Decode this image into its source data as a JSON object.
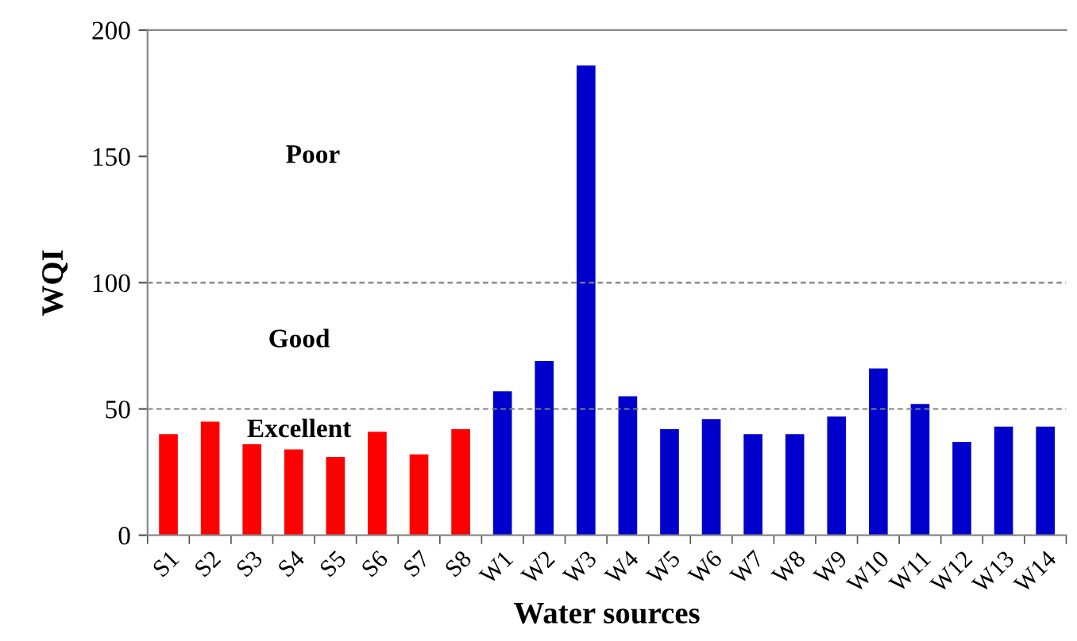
{
  "chart_data": {
    "type": "bar",
    "xlabel": "Water sources",
    "ylabel": "WQI",
    "categories": [
      "S1",
      "S2",
      "S3",
      "S4",
      "S5",
      "S6",
      "S7",
      "S8",
      "W1",
      "W2",
      "W3",
      "W4",
      "W5",
      "W6",
      "W7",
      "W8",
      "W9",
      "W10",
      "W11",
      "W12",
      "W13",
      "W14"
    ],
    "values": [
      40,
      45,
      36,
      34,
      31,
      41,
      32,
      42,
      57,
      69,
      186,
      55,
      42,
      46,
      40,
      40,
      47,
      66,
      52,
      37,
      43,
      43
    ],
    "colors": [
      "#ff0000",
      "#ff0000",
      "#ff0000",
      "#ff0000",
      "#ff0000",
      "#ff0000",
      "#ff0000",
      "#ff0000",
      "#0000cc",
      "#0000cc",
      "#0000cc",
      "#0000cc",
      "#0000cc",
      "#0000cc",
      "#0000cc",
      "#0000cc",
      "#0000cc",
      "#0000cc",
      "#0000cc",
      "#0000cc",
      "#0000cc",
      "#0000cc"
    ],
    "ylim": [
      0,
      200
    ],
    "yticks": [
      0,
      50,
      100,
      150,
      200
    ],
    "ref_lines": [
      {
        "axis": "y",
        "value": 50,
        "color": "#808080",
        "line_style": "dashed"
      },
      {
        "axis": "y",
        "value": 100,
        "color": "#808080",
        "line_style": "dashed"
      }
    ],
    "annotations": [
      "Poor",
      "Good",
      "Excellent"
    ]
  }
}
